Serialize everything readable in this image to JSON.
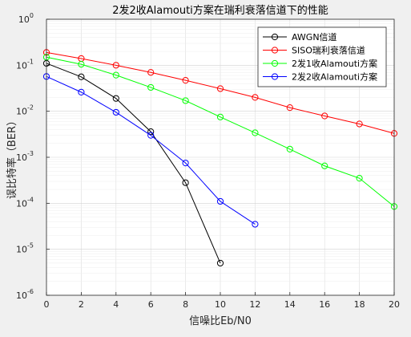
{
  "chart_data": {
    "type": "line",
    "title": "2发2收Alamouti方案在瑞利衰落信道下的性能",
    "xlabel": "信噪比Eb/N0",
    "ylabel": "误比特率（BER）",
    "xlim": [
      0,
      20
    ],
    "ylim": [
      1e-06,
      1
    ],
    "yscale": "log",
    "grid": true,
    "legend_position": "top-right",
    "x_ticks": [
      "0",
      "2",
      "4",
      "6",
      "8",
      "10",
      "12",
      "14",
      "16",
      "18",
      "20"
    ],
    "y_ticks": [
      {
        "base": "10",
        "exp": "0"
      },
      {
        "base": "10",
        "exp": "-1"
      },
      {
        "base": "10",
        "exp": "-2"
      },
      {
        "base": "10",
        "exp": "-3"
      },
      {
        "base": "10",
        "exp": "-4"
      },
      {
        "base": "10",
        "exp": "-5"
      },
      {
        "base": "10",
        "exp": "-6"
      }
    ],
    "series": [
      {
        "name": "AWGN信道",
        "color": "#000000",
        "x": [
          0,
          2,
          4,
          6,
          8,
          10
        ],
        "y": [
          0.11,
          0.056,
          0.019,
          0.0036,
          0.00028,
          5e-06
        ]
      },
      {
        "name": "SISO瑞利衰落信道",
        "color": "#ff0000",
        "x": [
          0,
          2,
          4,
          6,
          8,
          10,
          12,
          14,
          16,
          18,
          20
        ],
        "y": [
          0.19,
          0.14,
          0.1,
          0.07,
          0.047,
          0.031,
          0.02,
          0.012,
          0.0079,
          0.0053,
          0.0033
        ]
      },
      {
        "name": "2发1收Alamouti方案",
        "color": "#00ff00",
        "x": [
          0,
          2,
          4,
          6,
          8,
          10,
          12,
          14,
          16,
          18,
          20
        ],
        "y": [
          0.15,
          0.105,
          0.061,
          0.033,
          0.017,
          0.0075,
          0.0034,
          0.0015,
          0.00065,
          0.00035,
          8.5e-05
        ]
      },
      {
        "name": "2发2收Alamouti方案",
        "color": "#0000ff",
        "x": [
          0,
          2,
          4,
          6,
          8,
          10,
          12
        ],
        "y": [
          0.057,
          0.026,
          0.0095,
          0.003,
          0.00075,
          0.00011,
          3.5e-05
        ]
      }
    ]
  }
}
